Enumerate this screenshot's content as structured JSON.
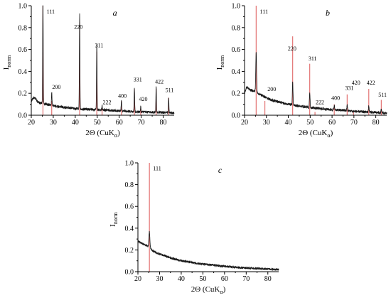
{
  "chart_data": [
    {
      "type": "line",
      "panel_label": "a",
      "ylabel_main": "I",
      "ylabel_sub": "norm",
      "xlabel_main": "2Θ (CuK",
      "xlabel_sub": "α",
      "xlabel_close": ")",
      "xlim": [
        20,
        85
      ],
      "ylim": [
        0,
        1.0
      ],
      "x_ticks": [
        20,
        30,
        40,
        50,
        60,
        70,
        80
      ],
      "y_ticks": [
        0.0,
        0.2,
        0.4,
        0.6,
        0.8,
        1.0
      ],
      "reference_lines": [
        {
          "x": 25.3,
          "height": 1.0
        },
        {
          "x": 29.3,
          "height": 0.13
        },
        {
          "x": 42.0,
          "height": 0.85
        },
        {
          "x": 49.8,
          "height": 0.58
        },
        {
          "x": 52.2,
          "height": 0.06
        },
        {
          "x": 61.0,
          "height": 0.13
        },
        {
          "x": 66.9,
          "height": 0.24
        },
        {
          "x": 69.8,
          "height": 0.06
        },
        {
          "x": 76.8,
          "height": 0.24
        },
        {
          "x": 82.5,
          "height": 0.16
        }
      ],
      "peak_labels": [
        {
          "x": 27.0,
          "y": 0.93,
          "text": "111"
        },
        {
          "x": 29.5,
          "y": 0.24,
          "text": "200"
        },
        {
          "x": 39.5,
          "y": 0.79,
          "text": "220"
        },
        {
          "x": 49.0,
          "y": 0.62,
          "text": "311"
        },
        {
          "x": 52.5,
          "y": 0.1,
          "text": "222"
        },
        {
          "x": 59.5,
          "y": 0.16,
          "text": "400"
        },
        {
          "x": 66.5,
          "y": 0.31,
          "text": "331"
        },
        {
          "x": 69.0,
          "y": 0.13,
          "text": "420"
        },
        {
          "x": 76.3,
          "y": 0.29,
          "text": "422"
        },
        {
          "x": 81.0,
          "y": 0.21,
          "text": "511"
        }
      ],
      "background": [
        [
          20,
          0.13
        ],
        [
          21,
          0.16
        ],
        [
          22,
          0.15
        ],
        [
          23,
          0.12
        ],
        [
          24,
          0.11
        ],
        [
          25,
          0.11
        ],
        [
          27,
          0.1
        ],
        [
          29,
          0.09
        ],
        [
          32,
          0.08
        ],
        [
          36,
          0.07
        ],
        [
          40,
          0.06
        ],
        [
          45,
          0.055
        ],
        [
          50,
          0.05
        ],
        [
          55,
          0.045
        ],
        [
          60,
          0.04
        ],
        [
          65,
          0.035
        ],
        [
          70,
          0.03
        ],
        [
          75,
          0.028
        ],
        [
          80,
          0.025
        ],
        [
          84,
          0.02
        ]
      ],
      "peaks": [
        {
          "x": 25.3,
          "height": 1.0,
          "width": 0.25
        },
        {
          "x": 29.3,
          "height": 0.12,
          "width": 0.25
        },
        {
          "x": 42.0,
          "height": 0.86,
          "width": 0.25
        },
        {
          "x": 49.8,
          "height": 0.6,
          "width": 0.25
        },
        {
          "x": 52.2,
          "height": 0.04,
          "width": 0.25
        },
        {
          "x": 61.0,
          "height": 0.1,
          "width": 0.25
        },
        {
          "x": 66.9,
          "height": 0.22,
          "width": 0.25
        },
        {
          "x": 69.8,
          "height": 0.05,
          "width": 0.25
        },
        {
          "x": 76.8,
          "height": 0.24,
          "width": 0.25
        },
        {
          "x": 82.5,
          "height": 0.14,
          "width": 0.25
        }
      ],
      "noise": 0.012
    },
    {
      "type": "line",
      "panel_label": "b",
      "ylabel_main": "I",
      "ylabel_sub": "norm",
      "xlabel_main": "2Θ (CuK",
      "xlabel_sub": "α",
      "xlabel_close": ")",
      "xlim": [
        20,
        85
      ],
      "ylim": [
        0,
        1.0
      ],
      "x_ticks": [
        20,
        30,
        40,
        50,
        60,
        70,
        80
      ],
      "y_ticks": [
        0.0,
        0.2,
        0.4,
        0.6,
        0.8,
        1.0
      ],
      "reference_lines": [
        {
          "x": 25.3,
          "height": 1.0
        },
        {
          "x": 29.3,
          "height": 0.13
        },
        {
          "x": 42.0,
          "height": 0.72
        },
        {
          "x": 49.8,
          "height": 0.47
        },
        {
          "x": 52.2,
          "height": 0.03
        },
        {
          "x": 61.0,
          "height": 0.1
        },
        {
          "x": 66.9,
          "height": 0.19
        },
        {
          "x": 69.8,
          "height": 0.04
        },
        {
          "x": 76.8,
          "height": 0.24
        },
        {
          "x": 82.5,
          "height": 0.14
        }
      ],
      "peak_labels": [
        {
          "x": 27.0,
          "y": 0.93,
          "text": "111"
        },
        {
          "x": 30.5,
          "y": 0.22,
          "text": "200"
        },
        {
          "x": 39.8,
          "y": 0.59,
          "text": "220"
        },
        {
          "x": 49.2,
          "y": 0.5,
          "text": "311"
        },
        {
          "x": 52.5,
          "y": 0.1,
          "text": "222"
        },
        {
          "x": 59.7,
          "y": 0.14,
          "text": "400"
        },
        {
          "x": 66.0,
          "y": 0.23,
          "text": "331"
        },
        {
          "x": 69.0,
          "y": 0.28,
          "text": "420"
        },
        {
          "x": 75.8,
          "y": 0.28,
          "text": "422"
        },
        {
          "x": 81.2,
          "y": 0.17,
          "text": "511"
        }
      ],
      "background": [
        [
          20,
          0.2
        ],
        [
          21,
          0.26
        ],
        [
          22,
          0.24
        ],
        [
          23,
          0.23
        ],
        [
          24,
          0.22
        ],
        [
          25,
          0.22
        ],
        [
          27,
          0.19
        ],
        [
          29,
          0.17
        ],
        [
          32,
          0.14
        ],
        [
          36,
          0.12
        ],
        [
          40,
          0.1
        ],
        [
          45,
          0.085
        ],
        [
          50,
          0.07
        ],
        [
          55,
          0.06
        ],
        [
          60,
          0.05
        ],
        [
          65,
          0.045
        ],
        [
          70,
          0.035
        ],
        [
          75,
          0.03
        ],
        [
          80,
          0.025
        ],
        [
          84,
          0.02
        ]
      ],
      "peaks": [
        {
          "x": 25.3,
          "height": 0.36,
          "width": 0.35
        },
        {
          "x": 42.0,
          "height": 0.21,
          "width": 0.3
        },
        {
          "x": 49.8,
          "height": 0.14,
          "width": 0.3
        },
        {
          "x": 61.0,
          "height": 0.04,
          "width": 0.3
        },
        {
          "x": 66.9,
          "height": 0.05,
          "width": 0.3
        },
        {
          "x": 76.8,
          "height": 0.06,
          "width": 0.3
        },
        {
          "x": 82.5,
          "height": 0.03,
          "width": 0.3
        }
      ],
      "noise": 0.012
    },
    {
      "type": "line",
      "panel_label": "c",
      "ylabel_main": "I",
      "ylabel_sub": "norm",
      "xlabel_main": "2Θ (CuK",
      "xlabel_sub": "α",
      "xlabel_close": ")",
      "xlim": [
        20,
        85
      ],
      "ylim": [
        0,
        1.0
      ],
      "x_ticks": [
        20,
        30,
        40,
        50,
        60,
        70,
        80
      ],
      "y_ticks": [
        0.0,
        0.2,
        0.4,
        0.6,
        0.8,
        1.0
      ],
      "reference_lines": [
        {
          "x": 25.3,
          "height": 1.0
        }
      ],
      "peak_labels": [
        {
          "x": 27.0,
          "y": 0.93,
          "text": "111"
        }
      ],
      "background": [
        [
          20,
          0.28
        ],
        [
          21,
          0.27
        ],
        [
          22,
          0.26
        ],
        [
          23,
          0.25
        ],
        [
          24,
          0.24
        ],
        [
          25,
          0.23
        ],
        [
          27,
          0.19
        ],
        [
          29,
          0.17
        ],
        [
          32,
          0.15
        ],
        [
          36,
          0.12
        ],
        [
          40,
          0.1
        ],
        [
          45,
          0.085
        ],
        [
          50,
          0.07
        ],
        [
          55,
          0.06
        ],
        [
          60,
          0.05
        ],
        [
          65,
          0.04
        ],
        [
          70,
          0.035
        ],
        [
          75,
          0.03
        ],
        [
          80,
          0.025
        ],
        [
          84,
          0.02
        ]
      ],
      "peaks": [
        {
          "x": 25.3,
          "height": 0.14,
          "width": 0.45
        }
      ],
      "noise": 0.01
    }
  ],
  "colors": {
    "trace": "#1a1a1a",
    "reference": "#e06666",
    "axis": "#000000"
  }
}
